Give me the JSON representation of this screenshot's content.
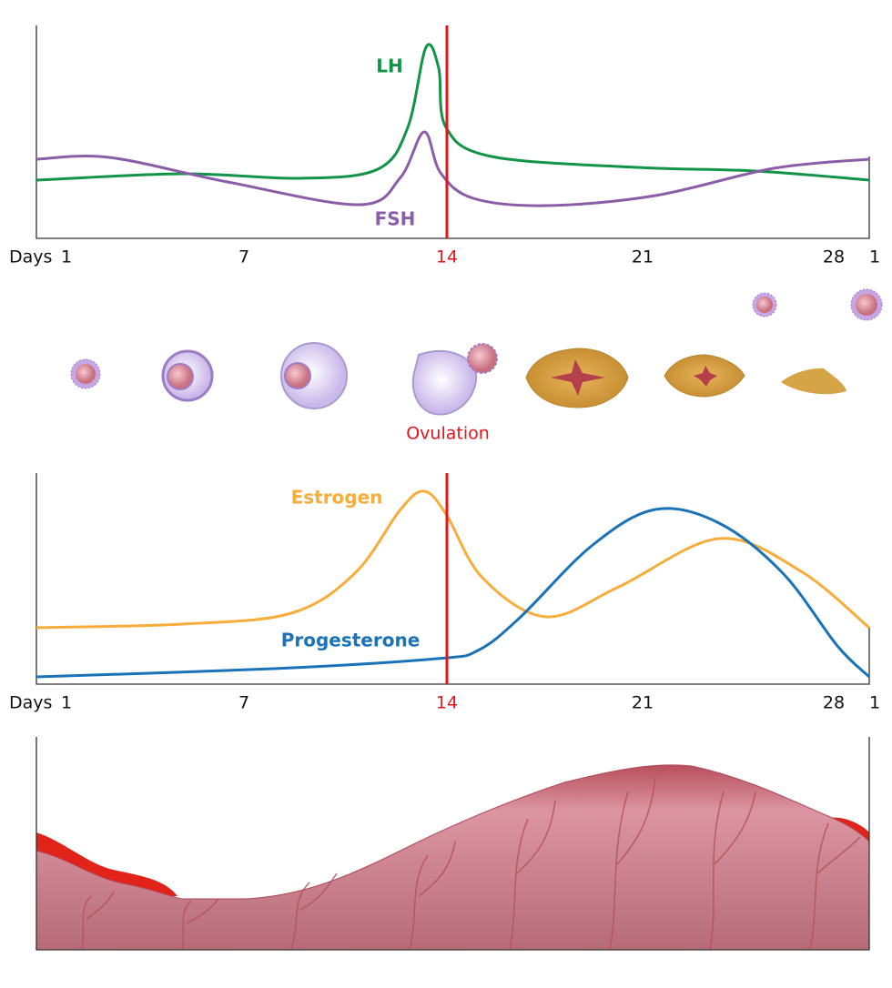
{
  "hormone_panel_1": {
    "curves": [
      {
        "label": "LH"
      },
      {
        "label": "FSH"
      }
    ],
    "axis": {
      "title": "Days",
      "labels": [
        "1",
        "7",
        "14",
        "21",
        "28",
        "1"
      ]
    }
  },
  "follicle_stages": {
    "ovulation_label": "Ovulation"
  },
  "hormone_panel_2": {
    "curves": [
      {
        "label": "Estrogen"
      },
      {
        "label": "Progesterone"
      }
    ],
    "axis": {
      "title": "Days",
      "labels": [
        "1",
        "7",
        "14",
        "21",
        "28",
        "1"
      ]
    }
  }
}
